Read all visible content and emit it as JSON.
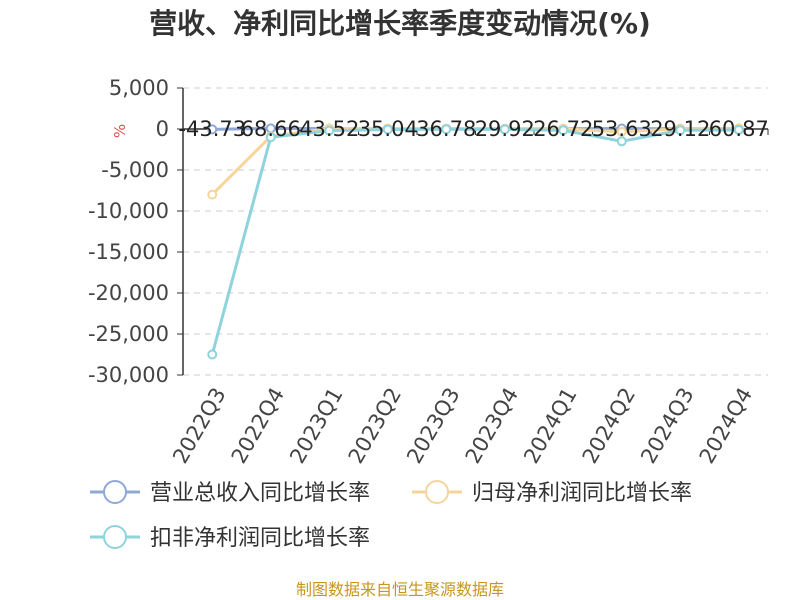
{
  "chart_data": {
    "type": "line",
    "title": "营收、净利同比增长率季度变动情况(%)",
    "ylabel": "%",
    "xlabel": "",
    "categories": [
      "2022Q3",
      "2022Q4",
      "2023Q1",
      "2023Q2",
      "2023Q3",
      "2023Q4",
      "2024Q1",
      "2024Q2",
      "2024Q3",
      "2024Q4"
    ],
    "ylim": [
      -30000,
      5000
    ],
    "yticks": [
      "5,000",
      "0",
      "-5,000",
      "-10,000",
      "-15,000",
      "-20,000",
      "-25,000",
      "-30,000"
    ],
    "grid": "horizontal dashed",
    "legend_position": "bottom",
    "series": [
      {
        "name": "营业总收入同比增长率",
        "color": "#8fa8d6",
        "values": [
          -43.73,
          68.66,
          43.52,
          35.04,
          36.78,
          29.92,
          26.72,
          53.63,
          29.12,
          60.87
        ],
        "labels": [
          "-43.73",
          "68.66",
          "43.52",
          "35.04",
          "36.78",
          "29.92",
          "26.72",
          "53.63",
          "29.12",
          "60.87"
        ]
      },
      {
        "name": "归母净利润同比增长率",
        "color": "#f6d59a",
        "values": [
          -8000,
          -900,
          60,
          40,
          30,
          20,
          20,
          -350,
          30,
          50
        ]
      },
      {
        "name": "扣非净利润同比增长率",
        "color": "#8fd3dc",
        "values": [
          -27500,
          -1000,
          -200,
          -60,
          -30,
          -50,
          -150,
          -1500,
          -150,
          -100
        ]
      }
    ]
  },
  "source": "制图数据来自恒生聚源数据库"
}
